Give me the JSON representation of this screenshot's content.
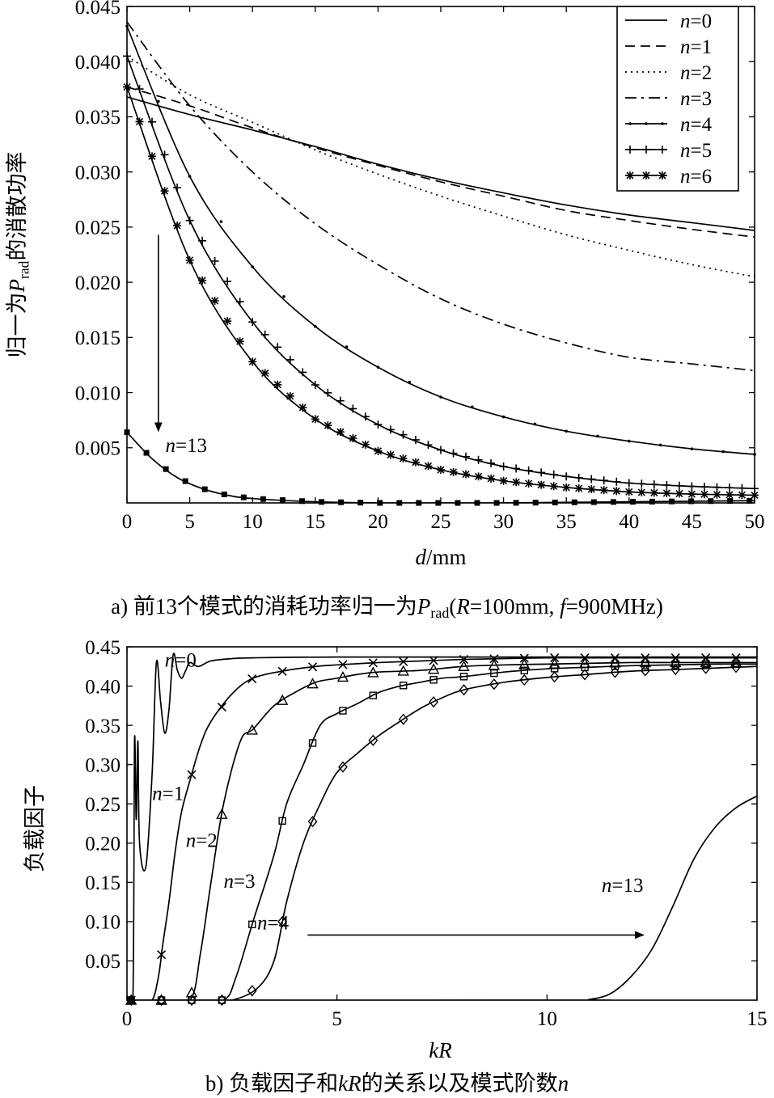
{
  "captions": {
    "a": [
      "a) 前13个模式的消耗功率归一为",
      "P",
      "rad",
      "(",
      "R",
      "=100mm, ",
      "f",
      "=900MHz)"
    ],
    "b": [
      "b) 负载因子和",
      "kR",
      "的关系以及模式阶数",
      "n"
    ]
  },
  "chart_data": [
    {
      "type": "line",
      "xlabel": [
        "d",
        "/mm"
      ],
      "ylabel": [
        "归一为",
        "P",
        "rad",
        "的消散功率"
      ],
      "xlim": [
        0,
        50
      ],
      "ylim": [
        0,
        0.045
      ],
      "x_ticks": [
        "0",
        "5",
        "10",
        "15",
        "20",
        "25",
        "30",
        "35",
        "40",
        "45",
        "50"
      ],
      "y_ticks": [
        "0.005",
        "0.010",
        "0.015",
        "0.020",
        "0.025",
        "0.030",
        "0.035",
        "0.040",
        "0.045"
      ],
      "y_tick_values": [
        0.005,
        0.01,
        0.015,
        0.02,
        0.025,
        0.03,
        0.035,
        0.04,
        0.045
      ],
      "legend_position": "top-right",
      "series": [
        {
          "name": "n=0",
          "style": "solid",
          "marker": "none",
          "x": [
            0,
            5,
            10,
            15,
            20,
            25,
            30,
            35,
            40,
            45,
            50
          ],
          "y": [
            0.0368,
            0.0352,
            0.0338,
            0.0323,
            0.0307,
            0.0293,
            0.0281,
            0.027,
            0.0261,
            0.0254,
            0.0247
          ]
        },
        {
          "name": "n=1",
          "style": "dashed",
          "marker": "none",
          "x": [
            0,
            5,
            10,
            15,
            20,
            25,
            30,
            35,
            40,
            45,
            50
          ],
          "y": [
            0.0377,
            0.036,
            0.034,
            0.0322,
            0.0306,
            0.0291,
            0.0278,
            0.0265,
            0.0256,
            0.0248,
            0.0241
          ]
        },
        {
          "name": "n=2",
          "style": "dotted",
          "marker": "none",
          "x": [
            0,
            5,
            10,
            15,
            20,
            25,
            30,
            35,
            40,
            45,
            50
          ],
          "y": [
            0.0405,
            0.037,
            0.0345,
            0.032,
            0.0298,
            0.0278,
            0.026,
            0.0243,
            0.0229,
            0.0216,
            0.0205
          ]
        },
        {
          "name": "n=3",
          "style": "dashdot",
          "marker": "none",
          "x": [
            0,
            5,
            10,
            15,
            20,
            25,
            30,
            35,
            40,
            45,
            50
          ],
          "y": [
            0.0436,
            0.036,
            0.03,
            0.0253,
            0.0216,
            0.0185,
            0.0162,
            0.0145,
            0.0132,
            0.0126,
            0.012
          ]
        },
        {
          "name": "n=4",
          "style": "solid",
          "marker": "dot",
          "x": [
            0,
            5,
            10,
            15,
            20,
            25,
            30,
            35,
            40,
            45,
            50
          ],
          "y": [
            0.0432,
            0.0296,
            0.0214,
            0.016,
            0.0123,
            0.0096,
            0.0078,
            0.0065,
            0.0056,
            0.0049,
            0.0044
          ]
        },
        {
          "name": "n=5",
          "style": "solid",
          "marker": "plus",
          "x": [
            0,
            5,
            10,
            15,
            20,
            25,
            30,
            35,
            40,
            45,
            50
          ],
          "y": [
            0.0405,
            0.0256,
            0.0164,
            0.0107,
            0.0071,
            0.0048,
            0.0033,
            0.0024,
            0.0018,
            0.0015,
            0.0013
          ]
        },
        {
          "name": "n=6",
          "style": "solid",
          "marker": "star",
          "x": [
            0,
            5,
            10,
            15,
            20,
            25,
            30,
            35,
            40,
            45,
            50
          ],
          "y": [
            0.0377,
            0.022,
            0.0128,
            0.0076,
            0.0047,
            0.003,
            0.002,
            0.0014,
            0.001,
            0.0008,
            0.0007
          ]
        },
        {
          "name": "n=13",
          "style": "solid",
          "marker": "square",
          "x": [
            0,
            2,
            4,
            6,
            8,
            10,
            15,
            20,
            25,
            30,
            40,
            50
          ],
          "y": [
            0.0064,
            0.004,
            0.0023,
            0.0013,
            0.0007,
            0.0004,
            0.0001,
            0.0,
            0.0,
            0.0,
            0.0001,
            0.0002
          ]
        }
      ],
      "annotations": [
        {
          "text": [
            "n",
            "=13"
          ],
          "x": 2.8,
          "y": 0.0046,
          "arrow_from": [
            2.5,
            0.0243
          ],
          "arrow_to": [
            2.5,
            0.0065
          ]
        }
      ]
    },
    {
      "type": "line",
      "xlabel": [
        "kR"
      ],
      "ylabel": [
        "负载因子"
      ],
      "xlim": [
        0,
        15
      ],
      "ylim": [
        0,
        0.45
      ],
      "x_ticks": [
        "0",
        "5",
        "10",
        "15"
      ],
      "y_ticks": [
        "0.05",
        "0.10",
        "0.15",
        "0.20",
        "0.25",
        "0.30",
        "0.35",
        "0.40",
        "0.45"
      ],
      "y_tick_values": [
        0.05,
        0.1,
        0.15,
        0.2,
        0.25,
        0.3,
        0.35,
        0.4,
        0.45
      ],
      "series": [
        {
          "name": "n=0",
          "marker": "square",
          "x": [
            0.0,
            0.14,
            0.18,
            0.22,
            0.26,
            0.3,
            0.45,
            0.6,
            0.7,
            0.8,
            0.9,
            1.0,
            1.1,
            1.2,
            1.3,
            1.4,
            1.5,
            1.7,
            2.0,
            2.5,
            3,
            5,
            10,
            15
          ],
          "y": [
            0,
            0,
            0.33,
            0.23,
            0.33,
            0.2,
            0.17,
            0.29,
            0.43,
            0.38,
            0.34,
            0.37,
            0.44,
            0.42,
            0.41,
            0.42,
            0.43,
            0.425,
            0.432,
            0.435,
            0.436,
            0.437,
            0.437,
            0.437
          ]
        },
        {
          "name": "n=1",
          "marker": "x",
          "x": [
            0,
            0.35,
            0.6,
            0.75,
            0.85,
            1.0,
            1.15,
            1.3,
            1.5,
            1.75,
            2.0,
            2.5,
            3.0,
            3.8,
            4.5,
            5.0,
            6.0,
            7.0,
            8.0,
            9.0,
            10,
            11,
            12,
            13,
            14,
            15
          ],
          "y": [
            0,
            0,
            0,
            0.03,
            0.07,
            0.125,
            0.19,
            0.24,
            0.28,
            0.325,
            0.355,
            0.39,
            0.41,
            0.42,
            0.425,
            0.427,
            0.43,
            0.432,
            0.434,
            0.435,
            0.436,
            0.436,
            0.436,
            0.436,
            0.436,
            0.436
          ]
        },
        {
          "name": "n=2",
          "marker": "triangle",
          "x": [
            0,
            0.8,
            1.5,
            1.75,
            2.0,
            2.3,
            2.7,
            3.0,
            3.5,
            4.0,
            4.5,
            5.0,
            5.5,
            6,
            7,
            8,
            9,
            10,
            11,
            12,
            13,
            14,
            15
          ],
          "y": [
            0,
            0,
            0,
            0.06,
            0.15,
            0.25,
            0.33,
            0.345,
            0.375,
            0.392,
            0.405,
            0.41,
            0.415,
            0.418,
            0.42,
            0.425,
            0.427,
            0.428,
            0.429,
            0.43,
            0.43,
            0.43,
            0.43
          ]
        },
        {
          "name": "n=3",
          "marker": "square",
          "x": [
            0,
            1.5,
            2.3,
            2.6,
            3.0,
            3.5,
            3.8,
            4.2,
            4.6,
            5.0,
            5.5,
            6.0,
            6.5,
            7.0,
            7.5,
            8,
            9,
            10,
            11,
            12,
            13,
            14,
            15
          ],
          "y": [
            0,
            0,
            0,
            0.03,
            0.1,
            0.185,
            0.25,
            0.3,
            0.35,
            0.365,
            0.378,
            0.392,
            0.4,
            0.405,
            0.41,
            0.412,
            0.418,
            0.422,
            0.424,
            0.426,
            0.427,
            0.428,
            0.428
          ]
        },
        {
          "name": "n=4",
          "marker": "diamond",
          "x": [
            0,
            2,
            2.5,
            3.1,
            3.5,
            3.8,
            4.2,
            4.6,
            5.0,
            5.5,
            6.0,
            6.5,
            7.0,
            7.5,
            8.0,
            9.0,
            10,
            11,
            12,
            13,
            14,
            15
          ],
          "y": [
            0,
            0,
            0,
            0.015,
            0.05,
            0.125,
            0.2,
            0.25,
            0.29,
            0.315,
            0.337,
            0.355,
            0.372,
            0.385,
            0.395,
            0.405,
            0.411,
            0.415,
            0.419,
            0.421,
            0.423,
            0.425
          ]
        },
        {
          "name": "n=13",
          "marker": "none",
          "x": [
            0,
            10.6,
            11.0,
            11.5,
            12.0,
            12.5,
            13.0,
            13.5,
            14.0,
            14.5,
            15
          ],
          "y": [
            0,
            0,
            0.001,
            0.008,
            0.03,
            0.065,
            0.12,
            0.18,
            0.22,
            0.245,
            0.26
          ]
        }
      ],
      "labels": [
        {
          "text": [
            "n",
            "=0"
          ],
          "x": 0.9,
          "y": 0.425
        },
        {
          "text": [
            "n",
            "=1"
          ],
          "x": 0.6,
          "y": 0.255
        },
        {
          "text": [
            "n",
            "=2"
          ],
          "x": 1.4,
          "y": 0.195
        },
        {
          "text": [
            "n",
            "=3"
          ],
          "x": 2.3,
          "y": 0.143
        },
        {
          "text": [
            "n",
            "=4"
          ],
          "x": 3.1,
          "y": 0.09
        },
        {
          "text": [
            "n",
            "=13"
          ],
          "x": 11.3,
          "y": 0.138
        }
      ],
      "arrow": {
        "from": [
          4.3,
          0.083
        ],
        "to": [
          12.3,
          0.083
        ]
      }
    }
  ]
}
